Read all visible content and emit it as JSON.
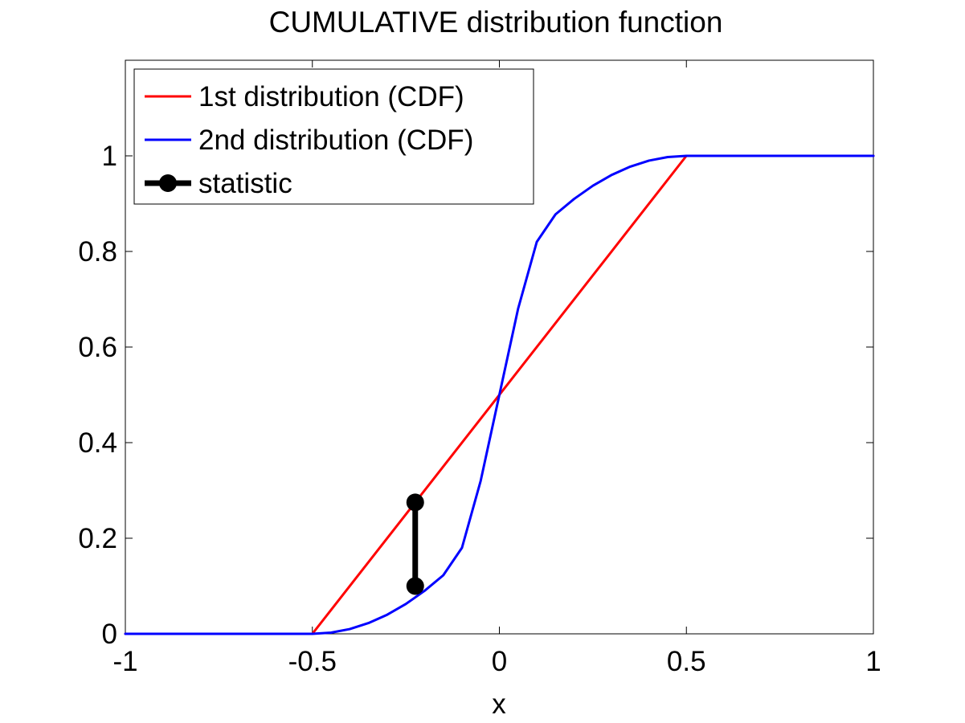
{
  "chart_data": {
    "type": "line",
    "title": "CUMULATIVE distribution function",
    "xlabel": "x",
    "ylabel": "",
    "xlim": [
      -1,
      1
    ],
    "ylim": [
      0,
      1.2
    ],
    "xticks": [
      -1,
      -0.5,
      0,
      0.5,
      1
    ],
    "xtick_labels": [
      "-1",
      "-0.5",
      "0",
      "0.5",
      "1"
    ],
    "yticks": [
      0,
      0.2,
      0.4,
      0.6,
      0.8,
      1
    ],
    "ytick_labels": [
      "0",
      "0.2",
      "0.4",
      "0.6",
      "0.8",
      "1"
    ],
    "grid": false,
    "legend_position": "top-left",
    "series": [
      {
        "name": "1st distribution (CDF)",
        "color": "#ff0000",
        "x": [
          -1,
          -0.5,
          0.5,
          1
        ],
        "y": [
          0,
          0,
          1,
          1
        ]
      },
      {
        "name": "2nd distribution (CDF)",
        "color": "#0000ff",
        "x": [
          -1,
          -0.5,
          -0.45,
          -0.4,
          -0.35,
          -0.3,
          -0.25,
          -0.2,
          -0.15,
          -0.1,
          -0.05,
          0,
          0.05,
          0.1,
          0.15,
          0.2,
          0.25,
          0.3,
          0.35,
          0.4,
          0.45,
          0.5,
          1
        ],
        "y": [
          0,
          0,
          0.0025,
          0.01,
          0.0225,
          0.04,
          0.0625,
          0.09,
          0.1225,
          0.18,
          0.32,
          0.5,
          0.68,
          0.82,
          0.8775,
          0.91,
          0.9375,
          0.96,
          0.9775,
          0.99,
          0.9975,
          1,
          1
        ]
      },
      {
        "name": "statistic",
        "color": "#000000",
        "marker": "circle",
        "x": [
          -0.225,
          -0.225
        ],
        "y": [
          0.275,
          0.1
        ]
      }
    ]
  }
}
